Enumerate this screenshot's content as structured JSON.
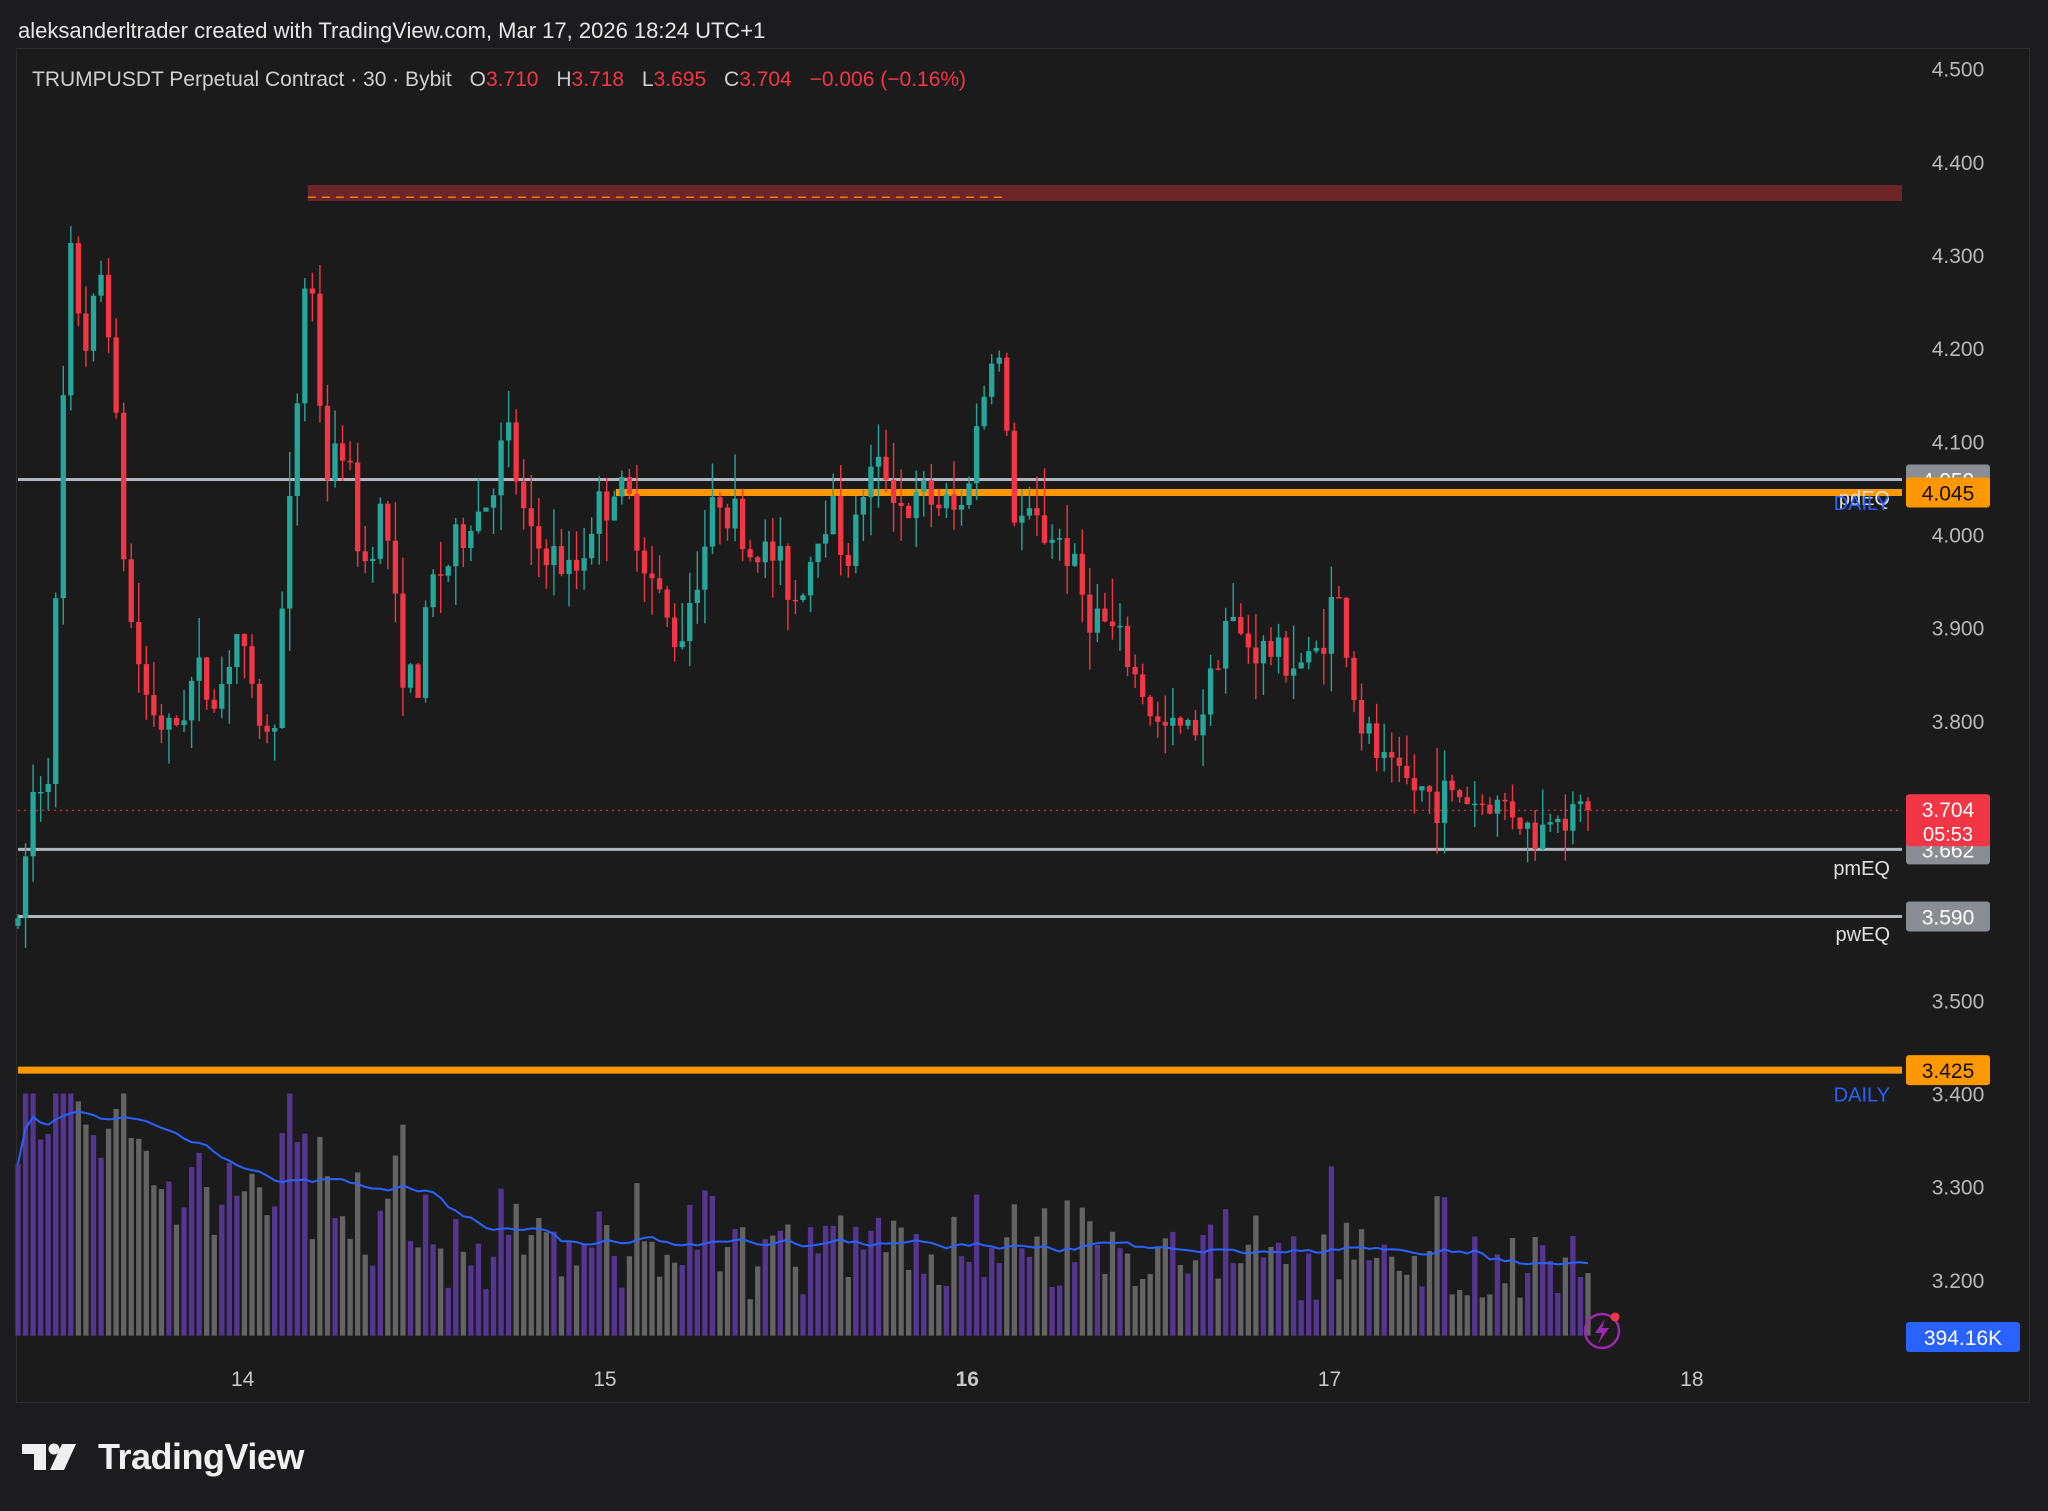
{
  "caption": "aleksanderltrader created with TradingView.com, Mar 17, 2026 18:24 UTC+1",
  "legend": {
    "symbol": "TRUMPUSDT Perpetual Contract · 30 · Bybit",
    "o_label": "O",
    "o_value": "3.710",
    "h_label": "H",
    "h_value": "3.718",
    "l_label": "L",
    "l_value": "3.695",
    "c_label": "C",
    "c_value": "3.704",
    "change": "−0.006 (−0.16%)"
  },
  "brand": {
    "name": "TradingView",
    "logo_icon": "tradingview-logo-icon"
  },
  "colors": {
    "up": "#26a69a",
    "down": "#f23645",
    "orange": "#ff9800",
    "level_line": "#b2b5be",
    "daily_label": "#2962ff",
    "volume_ma": "#2962ff",
    "volume_up": "#5b3a9e",
    "volume_down": "#6b6b6b",
    "resistance_zone": "#8b2a2e"
  },
  "chart_data": {
    "type": "candlestick",
    "symbol": "TRUMPUSDT",
    "interval": "30",
    "exchange": "Bybit",
    "y_range": [
      3.13,
      4.52
    ],
    "y_ticks": [
      "4.500",
      "4.400",
      "4.300",
      "4.200",
      "4.100",
      "4.000",
      "3.900",
      "3.800",
      "3.500",
      "3.400",
      "3.300",
      "3.200"
    ],
    "x_ticks": [
      {
        "label": "14",
        "day": 14,
        "bold": false
      },
      {
        "label": "15",
        "day": 15,
        "bold": false
      },
      {
        "label": "16",
        "day": 16,
        "bold": true
      },
      {
        "label": "17",
        "day": 17,
        "bold": false
      },
      {
        "label": "18",
        "day": 18,
        "bold": false
      }
    ],
    "x_range_days": [
      13.38,
      18.58
    ],
    "candle_anchors": [
      [
        13.38,
        3.58
      ],
      [
        13.42,
        3.72
      ],
      [
        13.47,
        3.76
      ],
      [
        13.52,
        4.3
      ],
      [
        13.57,
        4.2
      ],
      [
        13.62,
        4.3
      ],
      [
        13.68,
        3.93
      ],
      [
        13.73,
        3.83
      ],
      [
        13.8,
        3.78
      ],
      [
        13.87,
        3.85
      ],
      [
        13.93,
        3.82
      ],
      [
        13.98,
        3.9
      ],
      [
        14.03,
        3.82
      ],
      [
        14.08,
        3.77
      ],
      [
        14.13,
        4.02
      ],
      [
        14.18,
        4.32
      ],
      [
        14.23,
        4.06
      ],
      [
        14.28,
        4.1
      ],
      [
        14.33,
        3.96
      ],
      [
        14.39,
        4.04
      ],
      [
        14.43,
        3.88
      ],
      [
        14.48,
        3.82
      ],
      [
        14.52,
        3.95
      ],
      [
        14.57,
        3.97
      ],
      [
        14.62,
        4.01
      ],
      [
        14.68,
        4.04
      ],
      [
        14.73,
        4.11
      ],
      [
        14.79,
        3.99
      ],
      [
        14.85,
        3.98
      ],
      [
        14.91,
        3.95
      ],
      [
        14.97,
        4.02
      ],
      [
        15.03,
        4.05
      ],
      [
        15.07,
        4.03
      ],
      [
        15.13,
        3.95
      ],
      [
        15.2,
        3.88
      ],
      [
        15.26,
        3.97
      ],
      [
        15.32,
        4.05
      ],
      [
        15.4,
        3.98
      ],
      [
        15.46,
        3.98
      ],
      [
        15.53,
        3.93
      ],
      [
        15.62,
        4.04
      ],
      [
        15.67,
        3.97
      ],
      [
        15.72,
        4.06
      ],
      [
        15.78,
        4.07
      ],
      [
        15.83,
        4.02
      ],
      [
        15.88,
        4.04
      ],
      [
        15.94,
        4.03
      ],
      [
        15.98,
        4.02
      ],
      [
        16.08,
        4.22
      ],
      [
        16.13,
        4.02
      ],
      [
        16.19,
        4.01
      ],
      [
        16.27,
        3.99
      ],
      [
        16.33,
        3.92
      ],
      [
        16.39,
        3.9
      ],
      [
        16.45,
        3.86
      ],
      [
        16.53,
        3.79
      ],
      [
        16.59,
        3.79
      ],
      [
        16.64,
        3.8
      ],
      [
        16.71,
        3.91
      ],
      [
        16.78,
        3.88
      ],
      [
        16.86,
        3.87
      ],
      [
        16.95,
        3.86
      ],
      [
        17.02,
        3.94
      ],
      [
        17.08,
        3.8
      ],
      [
        17.15,
        3.75
      ],
      [
        17.22,
        3.73
      ],
      [
        17.28,
        3.72
      ],
      [
        17.36,
        3.72
      ],
      [
        17.43,
        3.71
      ],
      [
        17.5,
        3.71
      ],
      [
        17.57,
        3.67
      ],
      [
        17.62,
        3.71
      ],
      [
        17.67,
        3.7
      ],
      [
        17.72,
        3.704
      ]
    ],
    "current_price": 3.704,
    "countdown": "05:53",
    "levels": [
      {
        "name": "pdEQ",
        "price": 4.059,
        "label": "4.059",
        "color": "#b2b5be",
        "width": 3,
        "start_day": 13.38,
        "tag": "pdEQ",
        "tag2": "DAILY",
        "tag2_price": 4.035,
        "tag_price": 4.04
      },
      {
        "name": "daily-high",
        "price": 4.045,
        "label": "4.045",
        "color": "#ff9800",
        "width": 7,
        "start_day": 15.03
      },
      {
        "name": "pmEQ",
        "price": 3.662,
        "label": "3.662",
        "color": "#b2b5be",
        "width": 3,
        "start_day": 13.38,
        "tag": "pmEQ",
        "tag_price": 3.643
      },
      {
        "name": "pwEQ",
        "price": 3.59,
        "label": "3.590",
        "color": "#b2b5be",
        "width": 3,
        "start_day": 13.38,
        "tag": "pwEQ",
        "tag_price": 3.572
      },
      {
        "name": "daily-low",
        "price": 3.425,
        "label": "3.425",
        "color": "#ff9800",
        "width": 7,
        "start_day": 13.38,
        "tag2": "DAILY",
        "tag2_price": 3.4
      }
    ],
    "resistance_zone": {
      "top": 4.375,
      "bottom": 4.358,
      "start_day": 14.18,
      "end_day": 18.58,
      "dashed_end_day": 16.1,
      "dashed_price": 4.362
    },
    "volume": {
      "last_label": "394.16K",
      "baseline_price": 3.14,
      "peak_price": 3.4
    }
  }
}
